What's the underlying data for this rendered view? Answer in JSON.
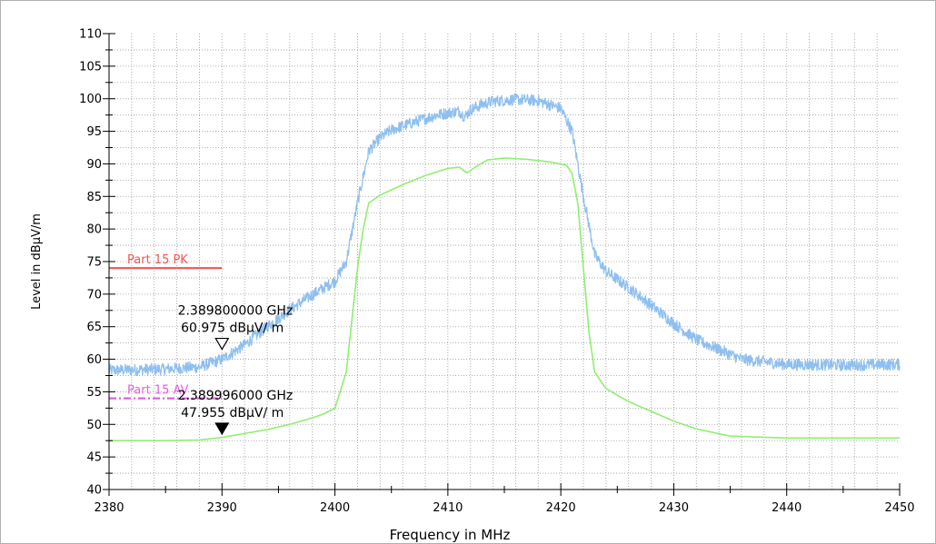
{
  "chart_data": {
    "type": "line",
    "title": "",
    "xlabel": "Frequency in MHz",
    "ylabel": "Level in dBµV/m",
    "xlim": [
      2380,
      2450
    ],
    "ylim": [
      40,
      110
    ],
    "x_ticks": [
      2380,
      2390,
      2400,
      2410,
      2420,
      2430,
      2440,
      2450
    ],
    "y_ticks": [
      40,
      45,
      50,
      55,
      60,
      65,
      70,
      75,
      80,
      85,
      90,
      95,
      100,
      105,
      110
    ],
    "grid": true,
    "series": [
      {
        "color": "#8fbfef",
        "noise": 0.9,
        "x": [
          2380,
          2385,
          2388,
          2390,
          2392,
          2394,
          2396,
          2398,
          2400,
          2401,
          2402,
          2403,
          2404,
          2405,
          2407,
          2409,
          2411,
          2411.5,
          2412,
          2413,
          2414,
          2416,
          2418,
          2420,
          2421,
          2422,
          2423,
          2424,
          2426,
          2428,
          2430,
          2432,
          2434,
          2436,
          2440,
          2445,
          2450
        ],
        "y": [
          58.3,
          58.5,
          58.8,
          60,
          62.2,
          65,
          67.6,
          69.9,
          72,
          75,
          84,
          92,
          94,
          95.2,
          96.4,
          97.5,
          98.1,
          97.2,
          98.3,
          99.1,
          99.6,
          99.9,
          99.7,
          98.5,
          95,
          85,
          76,
          73.5,
          71,
          68.3,
          65.5,
          63,
          61.5,
          60,
          59.2,
          59.1,
          59.2
        ]
      },
      {
        "color": "#8fef70",
        "noise": 0,
        "x": [
          2380,
          2385,
          2388,
          2390,
          2392,
          2394,
          2396,
          2398,
          2399,
          2400,
          2401,
          2401.5,
          2402,
          2402.5,
          2403,
          2404,
          2406,
          2408,
          2410,
          2411,
          2411.7,
          2412.5,
          2413.5,
          2415,
          2417,
          2419,
          2420.5,
          2421,
          2421.5,
          2422,
          2422.5,
          2423,
          2424,
          2425,
          2426,
          2428,
          2430,
          2432,
          2435,
          2440,
          2445,
          2450
        ],
        "y": [
          47.5,
          47.5,
          47.6,
          48,
          48.6,
          49.2,
          50,
          51,
          51.6,
          52.5,
          58,
          66,
          74,
          80,
          84,
          85.2,
          86.8,
          88.2,
          89.3,
          89.5,
          88.6,
          89.6,
          90.6,
          90.9,
          90.7,
          90.3,
          89.8,
          88.5,
          84,
          74,
          64,
          58,
          55.5,
          54.5,
          53.5,
          52,
          50.5,
          49.3,
          48.2,
          47.9,
          47.9,
          47.9
        ]
      }
    ],
    "limit_lines": [
      {
        "label": "Part 15 PK",
        "value": 74,
        "x_start": 2380,
        "x_end": 2390,
        "color": "#ee5555",
        "style": "solid"
      },
      {
        "label": "Part 15 AV",
        "value": 54,
        "x_start": 2380,
        "x_end": 2390,
        "color": "#e060e0",
        "style": "dashdot"
      }
    ],
    "markers": [
      {
        "line1": "2.389800000 GHz",
        "line2": "60.975 dBµV/ m",
        "x": 2390,
        "y": 60.975,
        "marker": "open"
      },
      {
        "line1": "2.389996000 GHz",
        "line2": "47.955 dBµV/ m",
        "x": 2390,
        "y": 47.955,
        "marker": "filled"
      }
    ]
  }
}
